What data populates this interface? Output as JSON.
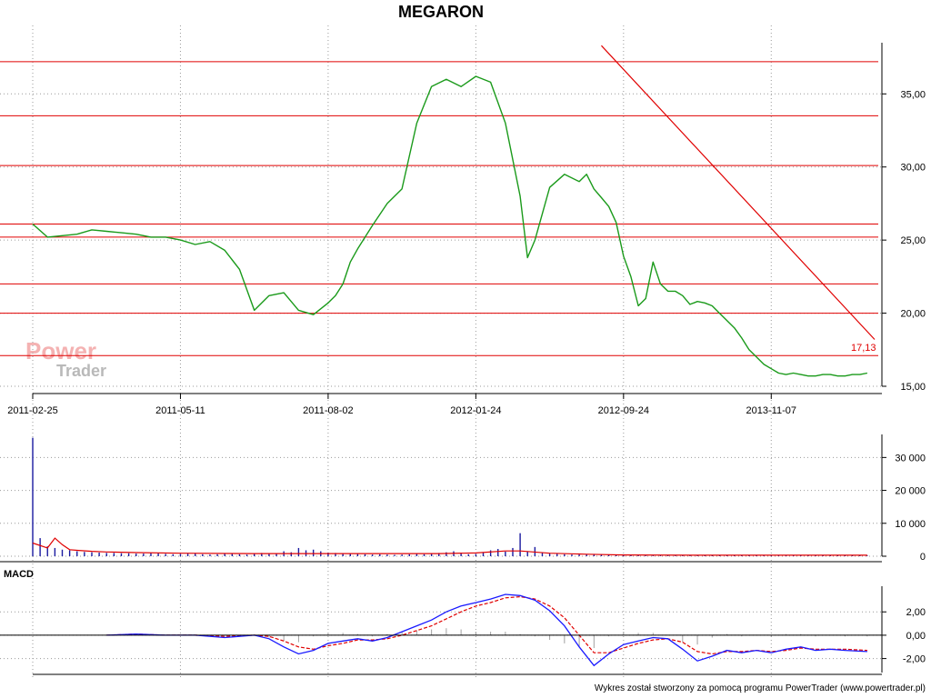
{
  "chart_data": [
    {
      "type": "line",
      "panel": "price",
      "title": "MEGARON",
      "y_axis_side": "right",
      "ylim": [
        15,
        38.5
      ],
      "y_ticks": [
        "15,00",
        "20,00",
        "25,00",
        "30,00",
        "35,00"
      ],
      "y_tick_values": [
        15,
        20,
        25,
        30,
        35
      ],
      "x_tick_labels": [
        "2011-02-25",
        "2011-05-11",
        "2011-08-02",
        "2012-01-24",
        "2012-09-24",
        "2013-11-07"
      ],
      "x_range_index": [
        0,
        114
      ],
      "x_tick_index": [
        0,
        20,
        40,
        60,
        80,
        100
      ],
      "grid": true,
      "series": [
        {
          "color": "#1a9a1a",
          "style": "moving-average",
          "x": [
            0,
            2,
            4,
            6,
            8,
            10,
            12,
            14,
            16,
            18,
            20,
            22,
            24,
            26,
            28,
            30,
            32,
            34,
            36,
            38,
            40,
            41,
            42,
            43,
            44,
            46,
            48,
            50,
            52,
            54,
            56,
            58,
            60,
            62,
            64,
            66,
            67,
            68,
            70,
            72,
            74,
            75,
            76,
            77,
            78,
            79,
            80,
            81,
            82,
            83,
            84,
            85,
            86,
            87,
            88,
            89,
            90,
            91,
            92,
            93,
            94,
            95,
            96,
            97,
            98,
            99,
            100,
            101,
            102,
            103,
            104,
            105,
            106,
            107,
            108,
            109,
            110,
            111,
            112,
            113
          ],
          "y": [
            26.1,
            25.2,
            25.3,
            25.4,
            25.7,
            25.6,
            25.5,
            25.4,
            25.2,
            25.2,
            25.0,
            24.7,
            24.9,
            24.3,
            23.0,
            20.2,
            21.2,
            21.4,
            20.2,
            19.9,
            20.7,
            21.2,
            22.0,
            23.5,
            24.4,
            26.0,
            27.5,
            28.5,
            33.0,
            35.5,
            36.0,
            35.5,
            36.2,
            35.8,
            33.0,
            28.0,
            23.8,
            25.0,
            28.6,
            29.5,
            29.0,
            29.5,
            28.5,
            27.9,
            27.3,
            26.2,
            23.9,
            22.5,
            20.5,
            21.0,
            23.5,
            22.0,
            21.5,
            21.5,
            21.2,
            20.6,
            20.8,
            20.7,
            20.5,
            20.0,
            19.5,
            19.0,
            18.3,
            17.5,
            17.0,
            16.5,
            16.2,
            15.9,
            15.8,
            15.9,
            15.8,
            15.7,
            15.7,
            15.8,
            15.8,
            15.7,
            15.7,
            15.8,
            15.8,
            15.9
          ]
        }
      ],
      "horizontal_lines": [
        37.2,
        33.5,
        30.1,
        26.1,
        25.2,
        22.0,
        20.0,
        17.1
      ],
      "trendline": {
        "x": [
          77,
          114
        ],
        "y": [
          38.3,
          18.2
        ]
      },
      "last_value_label": "17,13"
    },
    {
      "type": "bar",
      "panel": "volume",
      "y_axis_side": "right",
      "ylim": [
        0,
        37000
      ],
      "y_ticks": [
        "0",
        "10 000",
        "20 000",
        "30 000"
      ],
      "y_tick_values": [
        0,
        10000,
        20000,
        30000
      ],
      "grid": true,
      "series": [
        {
          "color": "#1a1aa0",
          "x": [
            0,
            1,
            2,
            3,
            4,
            5,
            6,
            7,
            8,
            9,
            10,
            11,
            12,
            13,
            14,
            15,
            16,
            17,
            18,
            19,
            20,
            21,
            22,
            23,
            24,
            25,
            26,
            27,
            28,
            29,
            30,
            31,
            32,
            33,
            34,
            35,
            36,
            37,
            38,
            39,
            40,
            41,
            42,
            43,
            44,
            45,
            46,
            47,
            48,
            49,
            50,
            51,
            52,
            53,
            54,
            55,
            56,
            57,
            58,
            59,
            60,
            61,
            62,
            63,
            64,
            65,
            66,
            67,
            68,
            69,
            70,
            71,
            72,
            73,
            74,
            75,
            76,
            77,
            78,
            79,
            80,
            81,
            82,
            83,
            84,
            85,
            86,
            87,
            88,
            89,
            90,
            91,
            92,
            93,
            94,
            95,
            96,
            97,
            98,
            99,
            100,
            101,
            102,
            103,
            104,
            105,
            106,
            107,
            108,
            109,
            110,
            111,
            112,
            113
          ],
          "values": [
            36000,
            5500,
            3000,
            2500,
            2000,
            1800,
            1500,
            1300,
            1200,
            1100,
            1000,
            1000,
            900,
            900,
            800,
            800,
            1000,
            900,
            700,
            600,
            700,
            800,
            900,
            600,
            500,
            600,
            700,
            800,
            600,
            500,
            800,
            1000,
            700,
            900,
            1500,
            1200,
            2500,
            1800,
            2000,
            1500,
            1100,
            1000,
            900,
            800,
            700,
            600,
            500,
            600,
            500,
            400,
            500,
            600,
            700,
            600,
            800,
            1000,
            1200,
            1500,
            900,
            600,
            700,
            1200,
            1800,
            2200,
            1400,
            2500,
            7000,
            1500,
            2800,
            1200,
            800,
            700,
            600,
            500,
            500,
            600,
            700,
            600,
            500,
            400,
            300,
            300,
            300,
            300,
            200,
            200,
            300,
            200,
            200,
            300,
            300,
            200,
            200,
            200,
            200,
            300,
            200,
            200,
            200,
            200,
            300,
            200,
            200,
            200,
            200,
            300,
            200,
            200,
            200,
            200,
            200,
            300,
            200,
            200
          ]
        },
        {
          "color": "#e00000",
          "style": "moving-average",
          "x": [
            0,
            2,
            3,
            4,
            5,
            6,
            8,
            10,
            14,
            20,
            30,
            40,
            50,
            55,
            60,
            64,
            66,
            70,
            75,
            80,
            90,
            100,
            113
          ],
          "values": [
            4000,
            2500,
            5500,
            3500,
            2000,
            1800,
            1500,
            1300,
            1100,
            900,
            800,
            800,
            800,
            800,
            1000,
            1600,
            1600,
            900,
            600,
            400,
            300,
            300,
            300
          ]
        }
      ]
    },
    {
      "type": "line",
      "panel": "macd",
      "title": "MACD",
      "y_axis_side": "right",
      "ylim": [
        -3.2,
        4.2
      ],
      "y_ticks": [
        "-2,00",
        "0,00",
        "2,00"
      ],
      "y_tick_values": [
        -2,
        0,
        2
      ],
      "grid": true,
      "series": [
        {
          "color": "#1a1aff",
          "x": [
            10,
            14,
            18,
            22,
            26,
            30,
            32,
            34,
            36,
            38,
            40,
            42,
            44,
            46,
            48,
            50,
            52,
            54,
            56,
            58,
            60,
            62,
            64,
            66,
            68,
            70,
            72,
            74,
            76,
            78,
            80,
            82,
            84,
            86,
            88,
            90,
            92,
            94,
            96,
            98,
            100,
            102,
            104,
            106,
            108,
            110,
            113
          ],
          "values": [
            0.0,
            0.1,
            0.0,
            0.0,
            -0.2,
            0.0,
            -0.3,
            -1.0,
            -1.6,
            -1.3,
            -0.7,
            -0.5,
            -0.3,
            -0.5,
            -0.2,
            0.3,
            0.8,
            1.3,
            2.0,
            2.5,
            2.8,
            3.1,
            3.5,
            3.4,
            3.0,
            2.1,
            0.8,
            -1.0,
            -2.6,
            -1.6,
            -0.8,
            -0.5,
            -0.2,
            -0.3,
            -1.2,
            -2.2,
            -1.8,
            -1.3,
            -1.5,
            -1.3,
            -1.5,
            -1.2,
            -1.0,
            -1.3,
            -1.2,
            -1.3,
            -1.4
          ]
        },
        {
          "color": "#e00000",
          "style": "dashed",
          "x": [
            10,
            14,
            18,
            22,
            26,
            30,
            32,
            34,
            36,
            38,
            40,
            42,
            44,
            46,
            48,
            50,
            52,
            54,
            56,
            58,
            60,
            62,
            64,
            66,
            68,
            70,
            72,
            74,
            76,
            78,
            80,
            82,
            84,
            86,
            88,
            90,
            92,
            94,
            96,
            98,
            100,
            102,
            104,
            106,
            108,
            110,
            113
          ],
          "values": [
            0.0,
            0.1,
            0.0,
            0.0,
            -0.1,
            0.0,
            -0.1,
            -0.5,
            -1.0,
            -1.2,
            -0.9,
            -0.7,
            -0.4,
            -0.4,
            -0.3,
            0.0,
            0.4,
            0.8,
            1.4,
            2.0,
            2.5,
            2.8,
            3.2,
            3.3,
            3.1,
            2.5,
            1.5,
            0.0,
            -1.5,
            -1.5,
            -1.1,
            -0.7,
            -0.4,
            -0.3,
            -0.6,
            -1.4,
            -1.6,
            -1.4,
            -1.4,
            -1.3,
            -1.4,
            -1.3,
            -1.1,
            -1.2,
            -1.2,
            -1.2,
            -1.3
          ]
        },
        {
          "color": "#a0a0a0",
          "style": "histogram",
          "x": [
            30,
            32,
            34,
            36,
            38,
            40,
            42,
            44,
            46,
            48,
            50,
            52,
            54,
            56,
            58,
            60,
            62,
            64,
            66,
            68,
            70,
            72,
            74,
            76,
            78,
            80,
            82,
            84,
            86,
            88,
            90,
            92,
            94,
            96,
            98,
            100,
            102,
            104,
            106,
            108,
            110,
            113
          ],
          "values": [
            0.0,
            -0.2,
            -0.5,
            -0.6,
            -0.1,
            0.2,
            0.2,
            0.1,
            -0.1,
            0.1,
            0.3,
            0.4,
            0.5,
            0.6,
            0.5,
            0.3,
            0.3,
            0.3,
            0.1,
            -0.1,
            -0.4,
            -0.7,
            -1.0,
            -1.1,
            -0.1,
            0.3,
            0.2,
            0.2,
            0.0,
            -0.6,
            -0.8,
            -0.2,
            0.1,
            -0.1,
            0.0,
            -0.1,
            0.1,
            0.1,
            -0.1,
            0.0,
            -0.1,
            -0.1
          ]
        }
      ]
    }
  ],
  "watermark": {
    "line1": "Power",
    "line2": "Trader"
  },
  "footer": "Wykres został stworzony za pomocą programu PowerTrader (www.powertrader.pl)"
}
